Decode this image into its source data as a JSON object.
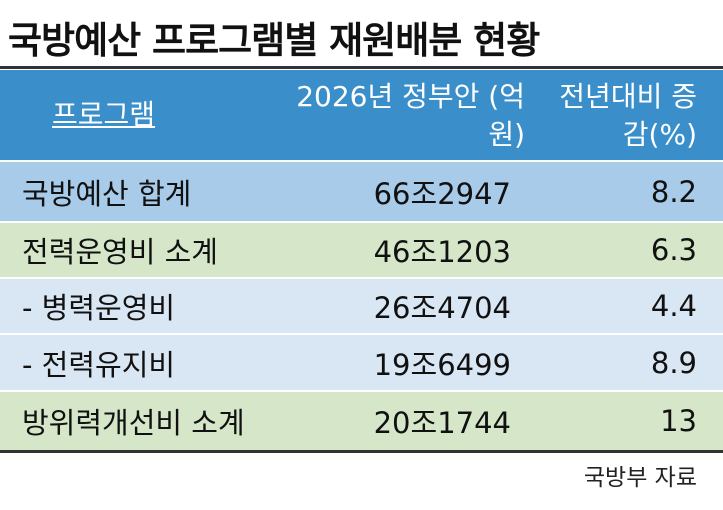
{
  "header": {
    "title": "국방예산 프로그램별 재원배분 현황"
  },
  "table": {
    "columns": [
      "프로그램",
      "2026년 정부안 (억원)",
      "전년대비 증감(%)"
    ],
    "rows": [
      [
        "국방예산 합계",
        "66조2947",
        "8.2"
      ],
      [
        "전력운영비 소계",
        "46조1203",
        "6.3"
      ],
      [
        "- 병력운영비",
        "26조4704",
        "4.4"
      ],
      [
        "- 전력유지비",
        "19조6499",
        "8.9"
      ],
      [
        "방위력개선비 소계",
        "20조1744",
        "13"
      ]
    ]
  },
  "footer": {
    "source": "국방부 자료"
  }
}
